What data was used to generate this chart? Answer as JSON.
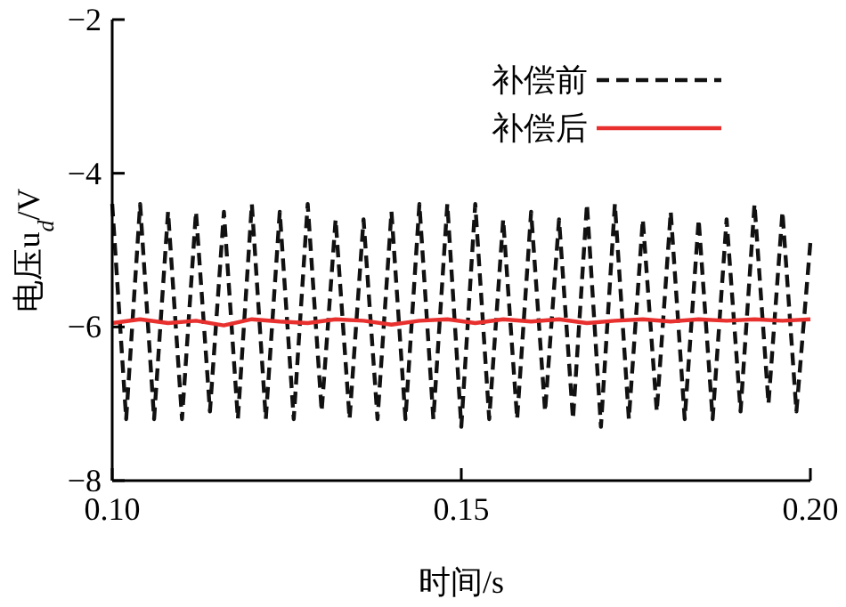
{
  "chart_data": {
    "type": "line",
    "xlabel": "时间/s",
    "ylabel": "电压u$_{d}$/V",
    "xlim": [
      0.1,
      0.2
    ],
    "xticks": [
      {
        "value": 0.1,
        "label": "0.10"
      },
      0.15,
      {
        "value": 0.2,
        "label": "0.20"
      }
    ],
    "ylim": [
      -8,
      -2
    ],
    "yticks": [
      -8,
      -6,
      -4,
      -2
    ],
    "grid": false,
    "legend": "top right",
    "series": [
      {
        "name": "补偿前",
        "color": "#111111",
        "line_style": "dashed",
        "x": [
          0.1,
          0.102,
          0.104,
          0.106,
          0.108,
          0.11,
          0.112,
          0.114,
          0.116,
          0.118,
          0.12,
          0.122,
          0.124,
          0.126,
          0.128,
          0.13,
          0.132,
          0.134,
          0.136,
          0.138,
          0.14,
          0.142,
          0.144,
          0.146,
          0.148,
          0.15,
          0.152,
          0.154,
          0.156,
          0.158,
          0.16,
          0.162,
          0.164,
          0.166,
          0.168,
          0.17,
          0.172,
          0.174,
          0.176,
          0.178,
          0.18,
          0.182,
          0.184,
          0.186,
          0.188,
          0.19,
          0.192,
          0.194,
          0.196,
          0.198,
          0.2
        ],
        "values": [
          -4.4,
          -7.2,
          -4.4,
          -7.2,
          -4.5,
          -7.2,
          -4.5,
          -7.1,
          -4.5,
          -7.2,
          -4.4,
          -7.2,
          -4.5,
          -7.2,
          -4.4,
          -7.1,
          -4.6,
          -7.2,
          -4.6,
          -7.2,
          -4.5,
          -7.2,
          -4.4,
          -7.2,
          -4.4,
          -7.3,
          -4.4,
          -7.2,
          -4.6,
          -7.2,
          -4.5,
          -7.1,
          -4.6,
          -7.2,
          -4.4,
          -7.3,
          -4.4,
          -7.2,
          -4.6,
          -7.1,
          -4.5,
          -7.2,
          -4.6,
          -7.2,
          -4.6,
          -7.1,
          -4.4,
          -7.0,
          -4.5,
          -7.1,
          -4.9
        ]
      },
      {
        "name": "补偿后",
        "color": "#e8312f",
        "line_style": "solid",
        "x": [
          0.1,
          0.104,
          0.108,
          0.112,
          0.116,
          0.12,
          0.124,
          0.128,
          0.132,
          0.136,
          0.14,
          0.144,
          0.148,
          0.152,
          0.156,
          0.16,
          0.164,
          0.168,
          0.172,
          0.176,
          0.18,
          0.184,
          0.188,
          0.192,
          0.196,
          0.2
        ],
        "values": [
          -5.95,
          -5.9,
          -5.95,
          -5.92,
          -5.98,
          -5.9,
          -5.93,
          -5.95,
          -5.9,
          -5.92,
          -5.97,
          -5.92,
          -5.9,
          -5.95,
          -5.9,
          -5.93,
          -5.9,
          -5.95,
          -5.92,
          -5.9,
          -5.93,
          -5.9,
          -5.92,
          -5.9,
          -5.92,
          -5.9
        ]
      }
    ]
  }
}
